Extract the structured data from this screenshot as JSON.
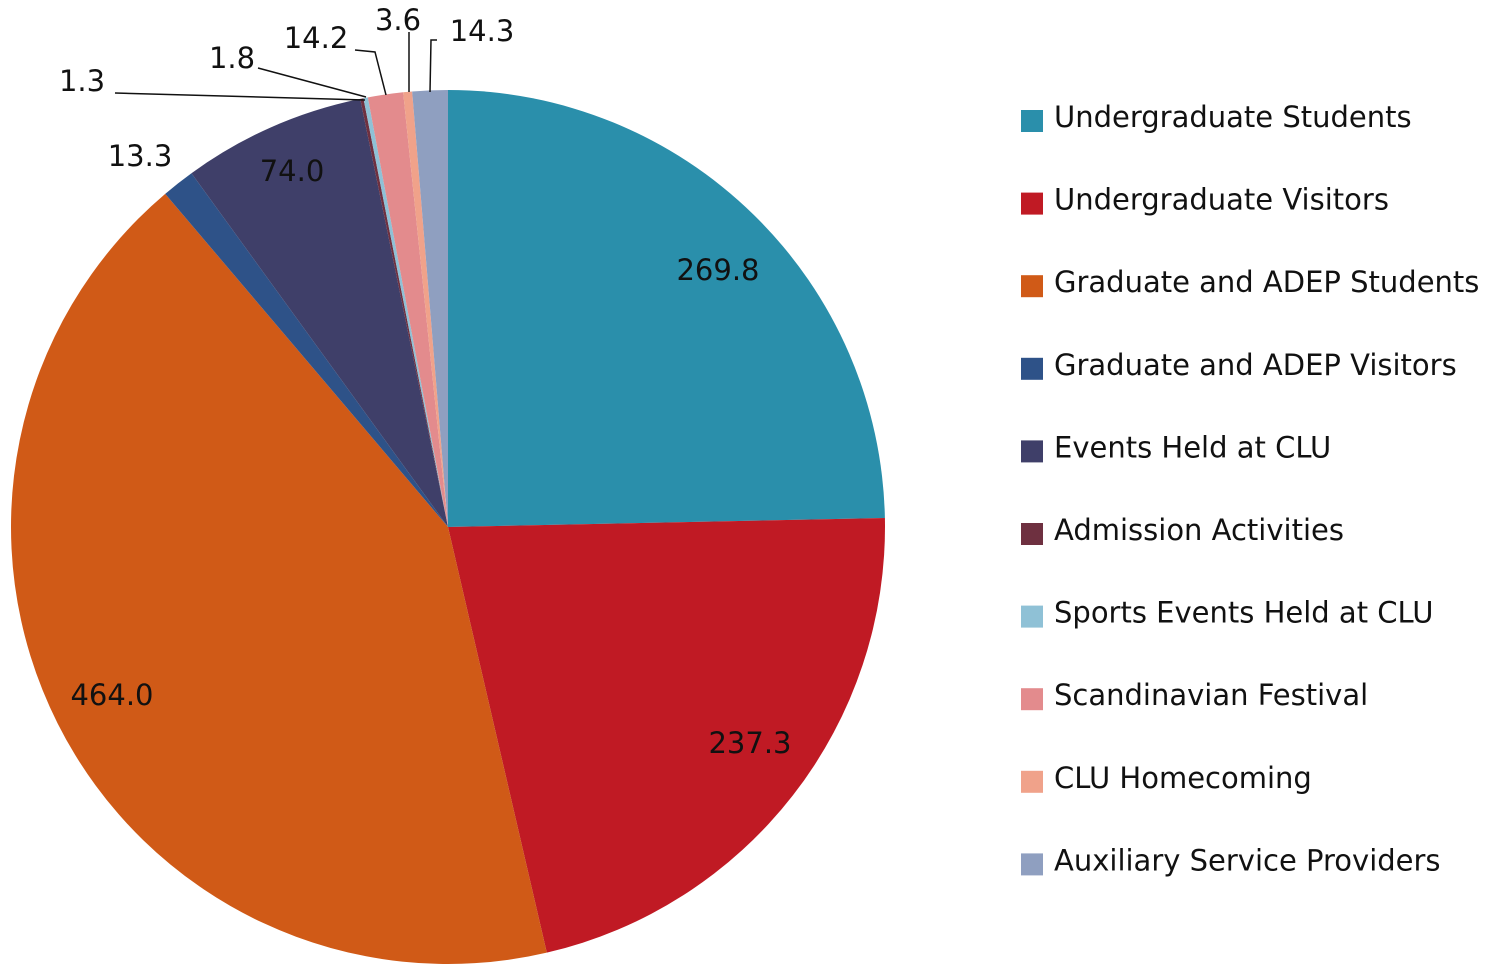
{
  "chart_data": {
    "type": "pie",
    "categories": [
      "Undergraduate Students",
      "Undergraduate Visitors",
      "Graduate and ADEP Students",
      "Graduate and ADEP Visitors",
      "Events Held at CLU",
      "Admission Activities",
      "Sports Events Held at CLU",
      "Scandinavian Festival",
      "CLU Homecoming",
      "Auxiliary Service Providers"
    ],
    "values": [
      269.8,
      237.3,
      464.0,
      13.3,
      74.0,
      1.3,
      1.8,
      14.2,
      3.6,
      14.3
    ],
    "value_labels": [
      "269.8",
      "237.3",
      "464.0",
      "13.3",
      "74.0",
      "1.3",
      "1.8",
      "14.2",
      "3.6",
      "14.3"
    ],
    "colors": [
      "#2a8fab",
      "#c01a24",
      "#d05a17",
      "#2e5288",
      "#3f3f69",
      "#6e3040",
      "#8fc1d6",
      "#e38b8d",
      "#f0a28a",
      "#8f9fc0"
    ],
    "legend": "right"
  }
}
